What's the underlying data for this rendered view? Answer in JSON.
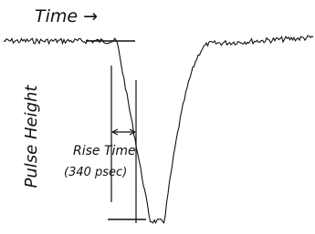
{
  "axis_labels": {
    "time": "Time →",
    "pulse_height": "Pulse Height"
  },
  "annotation": {
    "label": "Rise Time",
    "value": "(340 psec)"
  }
}
